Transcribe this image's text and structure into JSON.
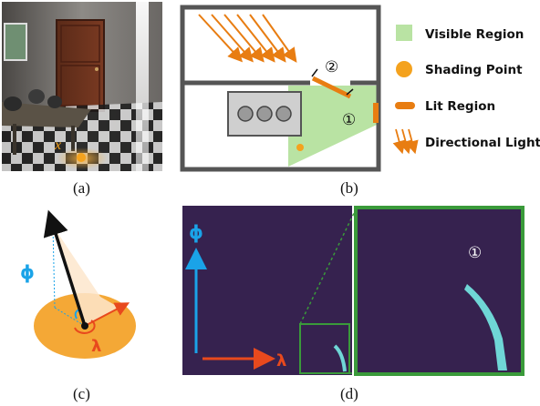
{
  "panel_a": {
    "caption": "(a)",
    "point_label": "x"
  },
  "panel_b": {
    "caption": "(b)",
    "marker_1": "①",
    "marker_2": "②",
    "legend": [
      {
        "label": "Visible Region",
        "color": "#b9e3a3"
      },
      {
        "label": "Shading Point",
        "color": "#f4a21e"
      },
      {
        "label": "Lit Region",
        "color": "#e87d12"
      },
      {
        "label": "Directional Light",
        "color": "#e87d12"
      }
    ]
  },
  "panel_c": {
    "caption": "(c)",
    "phi_label": "ϕ",
    "lambda_label": "λ"
  },
  "panel_d": {
    "caption": "(d)",
    "phi_label": "ϕ",
    "lambda_label": "λ",
    "marker_1": "①"
  },
  "colors": {
    "phi": "#1aa3e8",
    "lambda": "#e8491d",
    "map_bg": "#36224f",
    "trace": "#6fd6d6",
    "zoom": "#3a9a3a"
  }
}
